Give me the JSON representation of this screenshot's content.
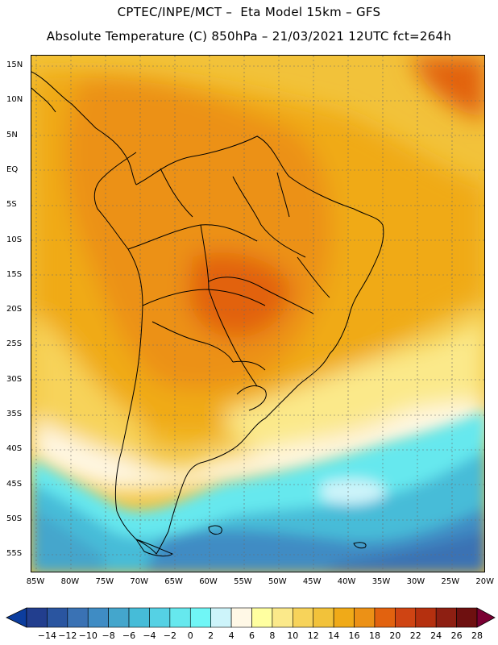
{
  "header": {
    "line1": "CPTEC/INPE/MCT –  Eta Model 15km – GFS",
    "line2": "Absolute Temperature (C) 850hPa – 21/03/2021 12UTC fct=264h"
  },
  "map": {
    "lat_labels": [
      "15N",
      "10N",
      "5N",
      "EQ",
      "5S",
      "10S",
      "15S",
      "20S",
      "25S",
      "30S",
      "35S",
      "40S",
      "45S",
      "50S",
      "55S"
    ],
    "lon_labels": [
      "85W",
      "80W",
      "75W",
      "70W",
      "65W",
      "60W",
      "55W",
      "50W",
      "45W",
      "40W",
      "35W",
      "30W",
      "25W",
      "20W"
    ]
  },
  "colorbar": {
    "labels": [
      "-14",
      "-12",
      "-10",
      "-8",
      "-6",
      "-4",
      "-2",
      "0",
      "2",
      "4",
      "6",
      "8",
      "10",
      "12",
      "14",
      "16",
      "18",
      "20",
      "22",
      "24",
      "26",
      "28"
    ],
    "colors": [
      "#223e8e",
      "#2a55a0",
      "#3a72b4",
      "#3f8cc4",
      "#44a6cc",
      "#46bcd8",
      "#55d1e4",
      "#66e8ee",
      "#70f6f6",
      "#cdf4fa",
      "#fff8e6",
      "#ffffa0",
      "#fbe98a",
      "#f7d35a",
      "#f2c23a",
      "#f0aa18",
      "#ec9116",
      "#e2620f",
      "#cf4413",
      "#b5300f",
      "#8e1f12",
      "#6e1010"
    ],
    "under_color": "#0c3d9e",
    "over_color": "#7a0033"
  }
}
